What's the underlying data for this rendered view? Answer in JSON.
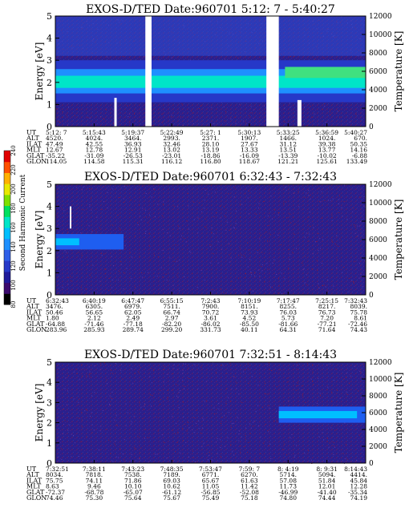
{
  "colorbar": {
    "label": "Second Harmonic Current",
    "ticks": [
      "80",
      "100",
      "120",
      "140",
      "160",
      "180",
      "200",
      "220",
      "240"
    ],
    "range": [
      80,
      240
    ],
    "colors": [
      "#000000",
      "#3b0a6e",
      "#1f1a9a",
      "#2638c8",
      "#2f5fe8",
      "#1e90ff",
      "#00bfff",
      "#00e5c8",
      "#00e060",
      "#7fe000",
      "#e8e800",
      "#ffb000",
      "#ff5000",
      "#e00000"
    ]
  },
  "chart_data": [
    {
      "type": "heatmap",
      "title": "EXOS-D/TED   Date:960701   5:12: 7 - 5:40:27",
      "ylabel": "Energy [eV]",
      "ylabel2": "Temperature [K]",
      "ylim": [
        0,
        5
      ],
      "yticks": [
        "0",
        "1",
        "2",
        "3",
        "4",
        "5"
      ],
      "ylim2": [
        0,
        12000
      ],
      "yticks2": [
        "0",
        "2000",
        "4000",
        "6000",
        "8000",
        "10000",
        "12000"
      ],
      "ephemeris_labels": [
        "UT",
        "ALT",
        "ILAT",
        "MLT",
        "GLAT",
        "GLON"
      ],
      "columns": [
        [
          "5:12: 7",
          "4520.",
          "47.49",
          "12.67",
          "-35.22",
          "114.05"
        ],
        [
          "5:15:43",
          "4024.",
          "42.55",
          "12.78",
          "-31.09",
          "114.58"
        ],
        [
          "5:19:37",
          "3464.",
          "36.93",
          "12.91",
          "-26.53",
          "115.31"
        ],
        [
          "5:22:49",
          "2993.",
          "32.46",
          "13.02",
          "-23.01",
          "116.12"
        ],
        [
          "5:27: 1",
          "2371.",
          "28.10",
          "13.19",
          "-18.86",
          "116.80"
        ],
        [
          "5:30:13",
          "1907.",
          "27.67",
          "13.33",
          "-16.09",
          "118.67"
        ],
        [
          "5:33:25",
          "1466.",
          "31.12",
          "13.51",
          "-13.39",
          "121.21"
        ],
        [
          "5:36:59",
          "1024.",
          "39.38",
          "13.77",
          "-10.02",
          "125.61"
        ],
        [
          "5:40:27",
          "670.",
          "50.35",
          "14.16",
          "-6.88",
          "133.49"
        ]
      ],
      "data_gaps": [
        {
          "x_start": 0.0,
          "x_end": 0.0,
          "note": "none"
        }
      ],
      "features": {
        "band_center_ev": 2.0,
        "band_half_width_ev": 0.5,
        "gaps_fraction": [
          [
            0.29,
            0.31
          ],
          [
            0.68,
            0.72
          ]
        ]
      }
    },
    {
      "type": "heatmap",
      "title": "EXOS-D/TED   Date:960701   6:32:43 - 7:32:43",
      "ylabel": "Energy [eV]",
      "ylabel2": "Temperature [K]",
      "ylim": [
        0,
        5
      ],
      "yticks": [
        "0",
        "1",
        "2",
        "3",
        "4",
        "5"
      ],
      "ylim2": [
        0,
        12000
      ],
      "yticks2": [
        "0",
        "2000",
        "4000",
        "6000",
        "8000",
        "10000",
        "12000"
      ],
      "ephemeris_labels": [
        "UT",
        "ALT",
        "ILAT",
        "MLT",
        "GLAT",
        "GLON"
      ],
      "columns": [
        [
          "6:32:43",
          "3476.",
          "50.46",
          "1.80",
          "-64.88",
          "283.96"
        ],
        [
          "6:40:19",
          "6305.",
          "56.65",
          "2.12",
          "-71.46",
          "285.93"
        ],
        [
          "6:47:47",
          "6979.",
          "62.05",
          "2.49",
          "-77.18",
          "289.74"
        ],
        [
          "6:55:15",
          "7511.",
          "66.74",
          "2.97",
          "-82.20",
          "299.20"
        ],
        [
          "7:2:43",
          "7900.",
          "70.72",
          "3.61",
          "-86.02",
          "331.73"
        ],
        [
          "7:10:19",
          "8151.",
          "73.93",
          "4.52",
          "-85.50",
          "40.11"
        ],
        [
          "7:17:47",
          "8255.",
          "76.03",
          "5.73",
          "-81.66",
          "64.31"
        ],
        [
          "7:25:15",
          "8217.",
          "76.73",
          "7.20",
          "-77.21",
          "71.64"
        ],
        [
          "7:32:43",
          "8039.",
          "75.78",
          "8.61",
          "-72.46",
          "74.43"
        ]
      ],
      "features": {
        "band_center_ev": 2.4,
        "band_half_width_ev": 0.35,
        "band_x_fraction": [
          0.0,
          0.22
        ]
      }
    },
    {
      "type": "heatmap",
      "title": "EXOS-D/TED   Date:960701   7:32:51 - 8:14:43",
      "ylabel": "Energy [eV]",
      "ylabel2": "Temperature [K]",
      "ylim": [
        0,
        5
      ],
      "yticks": [
        "0",
        "1",
        "2",
        "3",
        "4",
        "5"
      ],
      "ylim2": [
        0,
        12000
      ],
      "yticks2": [
        "0",
        "2000",
        "4000",
        "6000",
        "8000",
        "10000",
        "12000"
      ],
      "ephemeris_labels": [
        "UT",
        "ALT",
        "ILAT",
        "MLT",
        "GLAT",
        "GLON"
      ],
      "columns": [
        [
          "7:32:51",
          "8034.",
          "75.75",
          "8.63",
          "-72.37",
          "74.46"
        ],
        [
          "7:38:11",
          "7818.",
          "74.11",
          "9.46",
          "-68.78",
          "75.30"
        ],
        [
          "7:43:23",
          "7538.",
          "71.86",
          "10.10",
          "-65.07",
          "75.64"
        ],
        [
          "7:48:35",
          "7189.",
          "69.03",
          "10.62",
          "-61.12",
          "75.67"
        ],
        [
          "7:53:47",
          "6771.",
          "65.67",
          "11.05",
          "-56.85",
          "75.49"
        ],
        [
          "7:59: 7",
          "6270.",
          "61.63",
          "11.42",
          "-52.08",
          "75.18"
        ],
        [
          "8: 4:19",
          "5714.",
          "57.08",
          "11.73",
          "-46.99",
          "74.80"
        ],
        [
          "8: 9:31",
          "5094.",
          "51.84",
          "12.01",
          "-41.40",
          "74.44"
        ],
        [
          "8:14:43",
          "4414.",
          "45.84",
          "12.28",
          "-35.34",
          "74.19"
        ]
      ],
      "features": {
        "band_center_ev": 2.4,
        "band_half_width_ev": 0.4,
        "band_x_fraction": [
          0.72,
          1.0
        ]
      }
    }
  ]
}
